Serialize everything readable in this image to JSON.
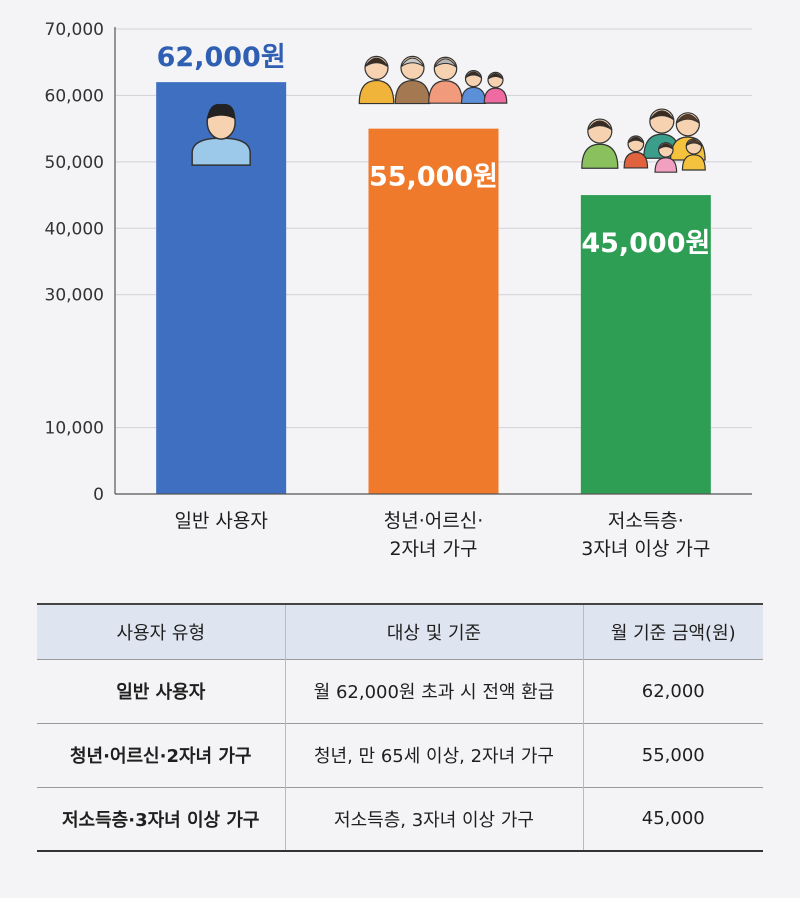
{
  "chart_data": {
    "type": "bar",
    "categories": [
      [
        "일반 사용자"
      ],
      [
        "청년·어르신·",
        "2자녀 가구"
      ],
      [
        "저소득층·",
        "3자녀 이상 가구"
      ]
    ],
    "values": [
      62000,
      55000,
      45000
    ],
    "value_labels": [
      "62,000원",
      "55,000원",
      "45,000원"
    ],
    "colors": [
      "#3f6fc0",
      "#ef7a2c",
      "#2f9e55"
    ],
    "value_label_colors": [
      "#2f5fb3",
      "#ffffff",
      "#ffffff"
    ],
    "icons": [
      "single-person-icon",
      "family-with-elders-icon",
      "large-family-icon"
    ],
    "ylim": [
      0,
      70000
    ],
    "yticks": [
      0,
      10000,
      30000,
      40000,
      50000,
      60000,
      70000
    ],
    "ytick_labels": [
      "0",
      "10,000",
      "30,000",
      "40,000",
      "50,000",
      "60,000",
      "70,000"
    ],
    "grid": true,
    "title": "",
    "xlabel": "",
    "ylabel": ""
  },
  "table": {
    "headers": [
      "사용자 유형",
      "대상 및 기준",
      "월 기준 금액(원)"
    ],
    "rows": [
      [
        "일반 사용자",
        "월 62,000원 초과 시 전액 환급",
        "62,000"
      ],
      [
        "청년·어르신·2자녀 가구",
        "청년, 만 65세 이상, 2자녀 가구",
        "55,000"
      ],
      [
        "저소득층·3자녀 이상 가구",
        "저소득층, 3자녀 이상 가구",
        "45,000"
      ]
    ]
  }
}
